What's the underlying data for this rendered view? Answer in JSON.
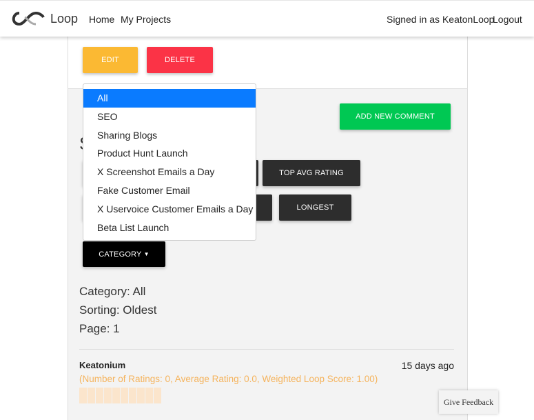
{
  "nav": {
    "brand": "Loop",
    "links": [
      "Home",
      "My Projects"
    ],
    "signed_in": "Signed in as KeatonLoop",
    "logout": "Logout"
  },
  "project_actions": {
    "edit": "EDIT",
    "delete": "DELETE"
  },
  "colors": {
    "edit": "#fbb933",
    "delete": "#fb3346",
    "add": "#00c853",
    "dropdown_active": "#0a7bff",
    "score_text": "#f5b35c"
  },
  "section": {
    "heading_partial": "S",
    "add_comment": "ADD NEW COMMENT"
  },
  "sort_buttons": [
    "TOP AVG RATING",
    "LONGEST"
  ],
  "category": {
    "button": "CATEGORY",
    "options": [
      "All",
      "SEO",
      "Sharing Blogs",
      "Product Hunt Launch",
      "X Screenshot Emails a Day",
      "Fake Customer Email",
      "X Uservoice Customer Emails a Day",
      "Beta List Launch"
    ],
    "selected": "All"
  },
  "status": {
    "category": "Category: All",
    "sorting": "Sorting: Oldest",
    "page": "Page: 1"
  },
  "comment": {
    "author": "Keatonium",
    "time": "15 days ago",
    "score": "(Number of Ratings: 0, Average Rating: 0.0, Weighted Loop Score: 1.00)",
    "rating": 0,
    "rating_max": 10
  },
  "feedback": "Give Feedback"
}
